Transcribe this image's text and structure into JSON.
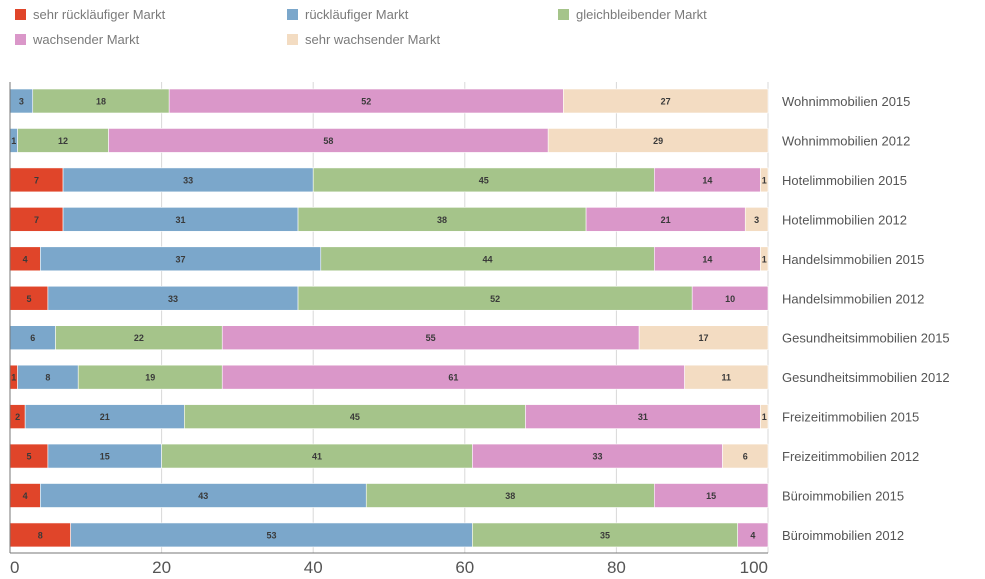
{
  "colors": {
    "sehr_ruecklaeufig": "#e0452a",
    "ruecklaeufig": "#7ba7cb",
    "gleichbleibend": "#a5c48a",
    "wachsend": "#da97c9",
    "sehr_wachsend": "#f3dcc2",
    "grid": "#d8d8d8",
    "axis": "#777777"
  },
  "chart_data": {
    "type": "bar",
    "orientation": "horizontal",
    "stacked": true,
    "title": "",
    "xlabel": "",
    "ylabel": "",
    "xlim": [
      0,
      100
    ],
    "xticks": [
      "0",
      "20",
      "40",
      "60",
      "80",
      "100"
    ],
    "legend_position": "top",
    "categories": [
      "Wohnimmobilien 2015",
      "Wohnimmobilien 2012",
      "Hotelimmobilien 2015",
      "Hotelimmobilien 2012",
      "Handelsimmobilien 2015",
      "Handelsimmobilien 2012",
      "Gesundheitsimmobilien 2015",
      "Gesundheitsimmobilien 2012",
      "Freizeitimmobilien 2015",
      "Freizeitimmobilien 2012",
      "Büroimmobilien 2015",
      "Büroimmobilien 2012"
    ],
    "series": [
      {
        "name": "sehr rückläufiger Markt",
        "color_key": "sehr_ruecklaeufig",
        "values": [
          0,
          0,
          7,
          7,
          4,
          5,
          0,
          1,
          2,
          5,
          4,
          8
        ]
      },
      {
        "name": "rückläufiger Markt",
        "color_key": "ruecklaeufig",
        "values": [
          3,
          1,
          33,
          31,
          37,
          33,
          6,
          8,
          21,
          15,
          43,
          53
        ]
      },
      {
        "name": "gleichbleibender Markt",
        "color_key": "gleichbleibend",
        "values": [
          18,
          12,
          45,
          38,
          44,
          52,
          22,
          19,
          45,
          41,
          38,
          35
        ]
      },
      {
        "name": "wachsender Markt",
        "color_key": "wachsend",
        "values": [
          52,
          58,
          14,
          21,
          14,
          10,
          55,
          61,
          31,
          33,
          15,
          4
        ]
      },
      {
        "name": "sehr wachsender Markt",
        "color_key": "sehr_wachsend",
        "values": [
          27,
          29,
          1,
          3,
          1,
          0,
          17,
          11,
          1,
          6,
          0,
          0
        ]
      }
    ],
    "legend_order": [
      0,
      3,
      1,
      4,
      2
    ]
  }
}
